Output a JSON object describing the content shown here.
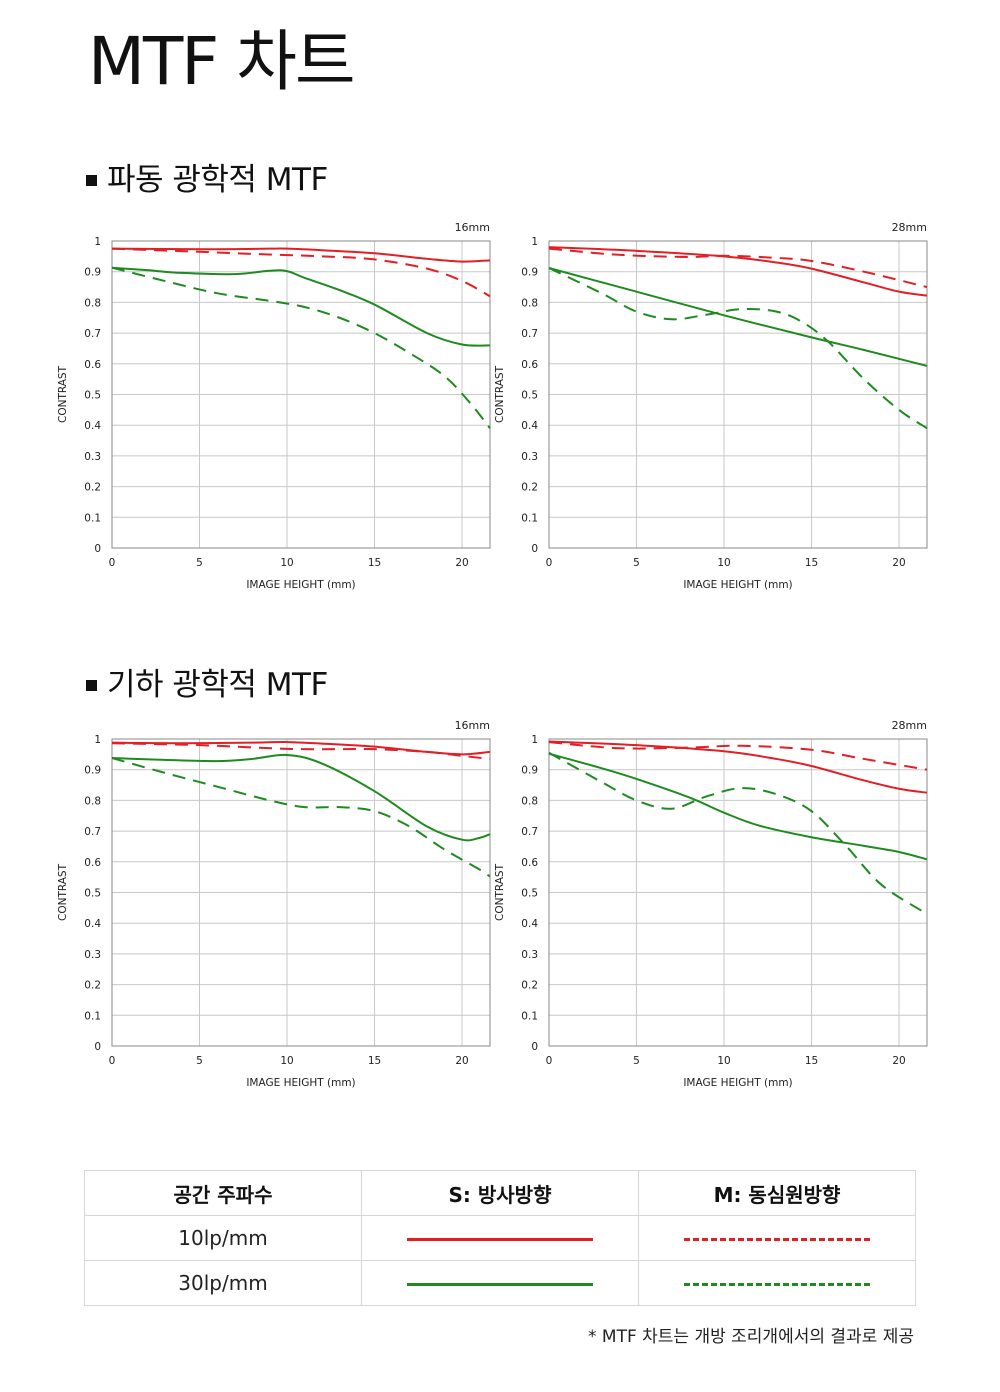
{
  "page_title": "MTF 차트",
  "sections": [
    {
      "title": "파동 광학적 MTF"
    },
    {
      "title": "기하 광학적 MTF"
    }
  ],
  "colors": {
    "red": "#e31e24",
    "green": "#1f8a1f",
    "grid": "#c8c8c8",
    "axis": "#888888"
  },
  "chart_data": [
    {
      "type": "line",
      "label": "16mm",
      "section": "파동 광학적 MTF",
      "xlabel": "IMAGE HEIGHT (mm)",
      "ylabel": "CONTRAST",
      "xlim": [
        0,
        21.6
      ],
      "ylim": [
        0,
        1
      ],
      "xticks": [
        0,
        5,
        10,
        15,
        20
      ],
      "yticks": [
        0,
        0.1,
        0.2,
        0.3,
        0.4,
        0.5,
        0.6,
        0.7,
        0.8,
        0.9,
        1
      ],
      "grid": true,
      "series": [
        {
          "name": "S: 방사방향 10lp/mm",
          "color": "red",
          "dashed": false,
          "x": [
            0,
            3,
            6,
            9,
            10,
            12,
            15,
            18,
            20,
            21.6
          ],
          "y": [
            0.975,
            0.974,
            0.973,
            0.975,
            0.975,
            0.97,
            0.96,
            0.942,
            0.933,
            0.937
          ]
        },
        {
          "name": "M: 동심원방향 10lp/mm",
          "color": "red",
          "dashed": true,
          "x": [
            0,
            4,
            8,
            12,
            15,
            18,
            20,
            21.6
          ],
          "y": [
            0.975,
            0.967,
            0.958,
            0.95,
            0.94,
            0.91,
            0.87,
            0.82
          ]
        },
        {
          "name": "S: 방사방향 30lp/mm",
          "color": "green",
          "dashed": false,
          "x": [
            0,
            2,
            4,
            7,
            9,
            10,
            11,
            13,
            15,
            18,
            20,
            21.6
          ],
          "y": [
            0.913,
            0.905,
            0.896,
            0.892,
            0.903,
            0.902,
            0.88,
            0.84,
            0.793,
            0.7,
            0.663,
            0.66
          ]
        },
        {
          "name": "M: 동심원방향 30lp/mm",
          "color": "green",
          "dashed": true,
          "x": [
            0,
            3,
            6,
            9,
            11,
            13,
            15,
            17,
            19,
            20.5,
            21.6
          ],
          "y": [
            0.913,
            0.87,
            0.83,
            0.805,
            0.785,
            0.75,
            0.7,
            0.635,
            0.56,
            0.47,
            0.39
          ]
        }
      ]
    },
    {
      "type": "line",
      "label": "28mm",
      "section": "파동 광학적 MTF",
      "xlabel": "IMAGE HEIGHT (mm)",
      "ylabel": "CONTRAST",
      "xlim": [
        0,
        21.6
      ],
      "ylim": [
        0,
        1
      ],
      "xticks": [
        0,
        5,
        10,
        15,
        20
      ],
      "yticks": [
        0,
        0.1,
        0.2,
        0.3,
        0.4,
        0.5,
        0.6,
        0.7,
        0.8,
        0.9,
        1
      ],
      "grid": true,
      "series": [
        {
          "name": "S: 방사방향 10lp/mm",
          "color": "red",
          "dashed": false,
          "x": [
            0,
            5,
            10,
            13,
            15,
            18,
            20,
            21.6
          ],
          "y": [
            0.98,
            0.968,
            0.95,
            0.93,
            0.91,
            0.865,
            0.835,
            0.822
          ]
        },
        {
          "name": "M: 동심원방향 10lp/mm",
          "color": "red",
          "dashed": true,
          "x": [
            0,
            4,
            8,
            10,
            13,
            15,
            18,
            21.6
          ],
          "y": [
            0.975,
            0.955,
            0.948,
            0.952,
            0.945,
            0.935,
            0.9,
            0.85
          ]
        },
        {
          "name": "S: 방사방향 30lp/mm",
          "color": "green",
          "dashed": false,
          "x": [
            0,
            5,
            10,
            15,
            18,
            21.6
          ],
          "y": [
            0.912,
            0.835,
            0.758,
            0.686,
            0.645,
            0.593
          ]
        },
        {
          "name": "M: 동심원방향 30lp/mm",
          "color": "green",
          "dashed": true,
          "x": [
            0,
            3,
            5,
            7,
            9,
            11,
            13,
            14.5,
            16,
            18,
            20,
            21.6
          ],
          "y": [
            0.912,
            0.83,
            0.77,
            0.745,
            0.76,
            0.778,
            0.77,
            0.735,
            0.67,
            0.55,
            0.45,
            0.39
          ]
        }
      ]
    },
    {
      "type": "line",
      "label": "16mm",
      "section": "기하 광학적 MTF",
      "xlabel": "IMAGE HEIGHT (mm)",
      "ylabel": "CONTRAST",
      "xlim": [
        0,
        21.6
      ],
      "ylim": [
        0,
        1
      ],
      "xticks": [
        0,
        5,
        10,
        15,
        20
      ],
      "yticks": [
        0,
        0.1,
        0.2,
        0.3,
        0.4,
        0.5,
        0.6,
        0.7,
        0.8,
        0.9,
        1
      ],
      "grid": true,
      "series": [
        {
          "name": "S: 방사방향 10lp/mm",
          "color": "red",
          "dashed": false,
          "x": [
            0,
            4,
            8,
            10,
            12,
            15,
            18,
            20,
            21.6
          ],
          "y": [
            0.988,
            0.986,
            0.988,
            0.99,
            0.985,
            0.975,
            0.958,
            0.95,
            0.958
          ]
        },
        {
          "name": "M: 동심원방향 10lp/mm",
          "color": "red",
          "dashed": true,
          "x": [
            0,
            5,
            10,
            13,
            15,
            18,
            20,
            21.6
          ],
          "y": [
            0.986,
            0.98,
            0.968,
            0.967,
            0.967,
            0.958,
            0.945,
            0.935
          ]
        },
        {
          "name": "S: 방사방향 30lp/mm",
          "color": "green",
          "dashed": false,
          "x": [
            0,
            3,
            6,
            8,
            10,
            12,
            15,
            18,
            20,
            21,
            21.6
          ],
          "y": [
            0.938,
            0.932,
            0.928,
            0.935,
            0.948,
            0.92,
            0.83,
            0.715,
            0.672,
            0.678,
            0.69
          ]
        },
        {
          "name": "M: 동심원방향 30lp/mm",
          "color": "green",
          "dashed": true,
          "x": [
            0,
            3,
            6,
            9,
            11,
            13,
            15,
            17,
            19,
            21,
            21.6
          ],
          "y": [
            0.938,
            0.89,
            0.845,
            0.8,
            0.778,
            0.778,
            0.765,
            0.715,
            0.64,
            0.575,
            0.552
          ]
        }
      ]
    },
    {
      "type": "line",
      "label": "28mm",
      "section": "기하 광학적 MTF",
      "xlabel": "IMAGE HEIGHT (mm)",
      "ylabel": "CONTRAST",
      "xlim": [
        0,
        21.6
      ],
      "ylim": [
        0,
        1
      ],
      "xticks": [
        0,
        5,
        10,
        15,
        20
      ],
      "yticks": [
        0,
        0.1,
        0.2,
        0.3,
        0.4,
        0.5,
        0.6,
        0.7,
        0.8,
        0.9,
        1
      ],
      "grid": true,
      "series": [
        {
          "name": "S: 방사방향 10lp/mm",
          "color": "red",
          "dashed": false,
          "x": [
            0,
            5,
            10,
            13,
            15,
            18,
            20,
            21.6
          ],
          "y": [
            0.992,
            0.98,
            0.96,
            0.935,
            0.912,
            0.865,
            0.838,
            0.825
          ]
        },
        {
          "name": "M: 동심원방향 10lp/mm",
          "color": "red",
          "dashed": true,
          "x": [
            0,
            4,
            8,
            11,
            15,
            18,
            21.6
          ],
          "y": [
            0.99,
            0.97,
            0.972,
            0.978,
            0.965,
            0.935,
            0.9
          ]
        },
        {
          "name": "S: 방사방향 30lp/mm",
          "color": "green",
          "dashed": false,
          "x": [
            0,
            3,
            5,
            8,
            10,
            12,
            15,
            18,
            20,
            21.6
          ],
          "y": [
            0.952,
            0.905,
            0.87,
            0.81,
            0.76,
            0.718,
            0.68,
            0.652,
            0.632,
            0.608
          ]
        },
        {
          "name": "M: 동심원방향 30lp/mm",
          "color": "green",
          "dashed": true,
          "x": [
            0,
            3,
            5,
            7,
            9,
            11,
            13,
            15,
            17,
            19,
            21.6
          ],
          "y": [
            0.955,
            0.86,
            0.8,
            0.773,
            0.813,
            0.84,
            0.82,
            0.765,
            0.65,
            0.525,
            0.43
          ]
        }
      ]
    }
  ],
  "legend": {
    "headers": [
      "공간 주파수",
      "S: 방사방향",
      "M: 동심원방향"
    ],
    "rows": [
      {
        "frequency": "10lp/mm",
        "color": "red"
      },
      {
        "frequency": "30lp/mm",
        "color": "green"
      }
    ]
  },
  "footnote": "* MTF 차트는 개방 조리개에서의 결과로 제공"
}
